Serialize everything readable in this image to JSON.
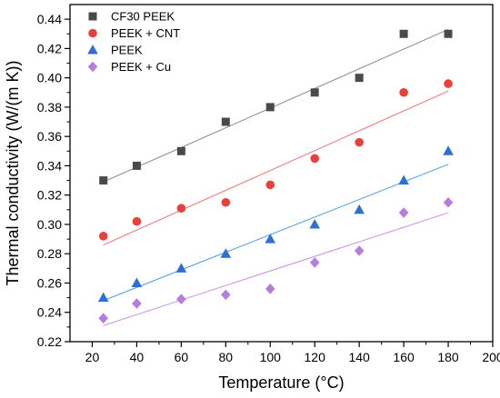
{
  "chart_data": {
    "type": "scatter",
    "xlabel": "Temperature (°C)",
    "ylabel": "Thermal conductivity (W/(m K))",
    "xlim": [
      10,
      200
    ],
    "ylim": [
      0.22,
      0.45
    ],
    "x_ticks": [
      "20",
      "40",
      "60",
      "80",
      "100",
      "120",
      "140",
      "160",
      "180",
      "200"
    ],
    "y_ticks": [
      "0.22",
      "0.24",
      "0.26",
      "0.28",
      "0.30",
      "0.32",
      "0.34",
      "0.36",
      "0.38",
      "0.40",
      "0.42",
      "0.44"
    ],
    "grid": false,
    "legend_position": "top-left",
    "series": [
      {
        "name": "CF30 PEEK",
        "marker": "square",
        "color": "#4a4a4a",
        "fit_color": "#8a8a8a",
        "x": [
          25,
          40,
          60,
          80,
          100,
          120,
          140,
          160,
          180
        ],
        "y": [
          0.33,
          0.34,
          0.35,
          0.37,
          0.38,
          0.39,
          0.4,
          0.43,
          0.43
        ],
        "fit": [
          [
            25,
            0.329
          ],
          [
            180,
            0.433
          ]
        ]
      },
      {
        "name": "PEEK + CNT",
        "marker": "circle",
        "color": "#e8413c",
        "fit_color": "#f07070",
        "x": [
          25,
          40,
          60,
          80,
          100,
          120,
          140,
          160,
          180
        ],
        "y": [
          0.292,
          0.302,
          0.311,
          0.315,
          0.327,
          0.345,
          0.356,
          0.39,
          0.396
        ],
        "fit": [
          [
            25,
            0.286
          ],
          [
            180,
            0.391
          ]
        ]
      },
      {
        "name": "PEEK",
        "marker": "triangle",
        "color": "#2f6fd0",
        "fit_color": "#4a9ae8",
        "x": [
          25,
          40,
          60,
          80,
          100,
          120,
          140,
          160,
          180
        ],
        "y": [
          0.25,
          0.26,
          0.27,
          0.28,
          0.29,
          0.3,
          0.31,
          0.33,
          0.35
        ],
        "fit": [
          [
            25,
            0.248
          ],
          [
            180,
            0.341
          ]
        ]
      },
      {
        "name": "PEEK + Cu",
        "marker": "diamond",
        "color": "#b77ce0",
        "fit_color": "#c98fe8",
        "x": [
          25,
          40,
          60,
          80,
          100,
          120,
          140,
          160,
          180
        ],
        "y": [
          0.236,
          0.246,
          0.249,
          0.252,
          0.256,
          0.274,
          0.282,
          0.308,
          0.315
        ],
        "fit": [
          [
            25,
            0.231
          ],
          [
            180,
            0.308
          ]
        ]
      }
    ]
  }
}
